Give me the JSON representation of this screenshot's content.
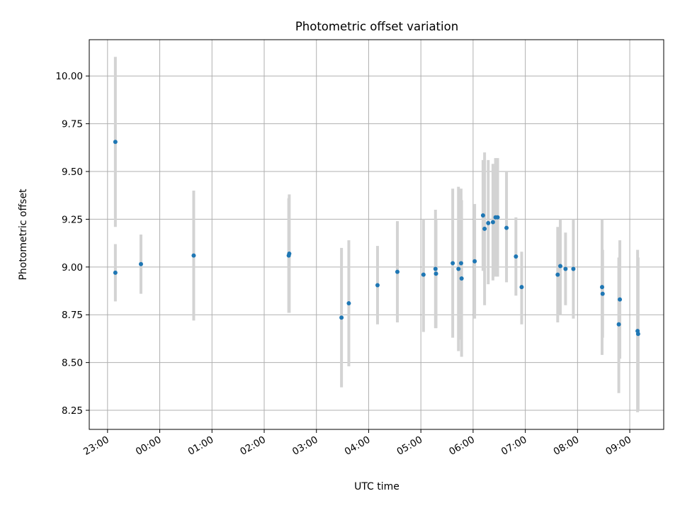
{
  "chart_data": {
    "type": "scatter",
    "title": "Photometric offset variation",
    "xlabel": "UTC time",
    "ylabel": "Photometric offset",
    "x_unit": "hours after 23:00 UTC",
    "x_tick_values": [
      0,
      1,
      2,
      3,
      4,
      5,
      6,
      7,
      8,
      9,
      10
    ],
    "x_tick_labels": [
      "23:00",
      "00:00",
      "01:00",
      "02:00",
      "03:00",
      "04:00",
      "05:00",
      "06:00",
      "07:00",
      "08:00",
      "09:00"
    ],
    "xlim": [
      -0.35,
      10.65
    ],
    "y_ticks": [
      8.25,
      8.5,
      8.75,
      9.0,
      9.25,
      9.5,
      9.75,
      10.0
    ],
    "y_tick_labels": [
      "8.25",
      "8.50",
      "8.75",
      "9.00",
      "9.25",
      "9.50",
      "9.75",
      "10.00"
    ],
    "ylim": [
      8.15,
      10.19
    ],
    "grid": true,
    "legend": false,
    "colors": {
      "marker": "#1f77b4",
      "errorbar": "#d3d3d3",
      "grid": "#b0b0b0"
    },
    "points": [
      {
        "x": 0.15,
        "y": 9.655,
        "err_low": 9.21,
        "err_high": 10.1
      },
      {
        "x": 0.15,
        "y": 8.97,
        "err_low": 8.82,
        "err_high": 9.12
      },
      {
        "x": 0.64,
        "y": 9.015,
        "err_low": 8.86,
        "err_high": 9.17
      },
      {
        "x": 1.65,
        "y": 9.06,
        "err_low": 8.72,
        "err_high": 9.4
      },
      {
        "x": 3.47,
        "y": 9.06,
        "err_low": 8.76,
        "err_high": 9.36
      },
      {
        "x": 3.48,
        "y": 9.07,
        "err_low": 8.76,
        "err_high": 9.38
      },
      {
        "x": 4.48,
        "y": 8.735,
        "err_low": 8.37,
        "err_high": 9.1
      },
      {
        "x": 4.62,
        "y": 8.81,
        "err_low": 8.48,
        "err_high": 9.14
      },
      {
        "x": 5.17,
        "y": 8.905,
        "err_low": 8.7,
        "err_high": 9.11
      },
      {
        "x": 5.55,
        "y": 8.975,
        "err_low": 8.71,
        "err_high": 9.24
      },
      {
        "x": 6.05,
        "y": 8.96,
        "err_low": 8.66,
        "err_high": 9.25
      },
      {
        "x": 6.28,
        "y": 8.99,
        "err_low": 8.68,
        "err_high": 9.3
      },
      {
        "x": 6.29,
        "y": 8.965,
        "err_low": 8.68,
        "err_high": 9.25
      },
      {
        "x": 6.61,
        "y": 9.02,
        "err_low": 8.63,
        "err_high": 9.41
      },
      {
        "x": 6.72,
        "y": 8.99,
        "err_low": 8.56,
        "err_high": 9.42
      },
      {
        "x": 6.77,
        "y": 9.02,
        "err_low": 8.62,
        "err_high": 9.41
      },
      {
        "x": 6.78,
        "y": 8.94,
        "err_low": 8.53,
        "err_high": 9.35
      },
      {
        "x": 7.03,
        "y": 9.03,
        "err_low": 8.73,
        "err_high": 9.33
      },
      {
        "x": 7.19,
        "y": 9.27,
        "err_low": 8.98,
        "err_high": 9.56
      },
      {
        "x": 7.22,
        "y": 9.2,
        "err_low": 8.8,
        "err_high": 9.6
      },
      {
        "x": 7.29,
        "y": 9.23,
        "err_low": 8.91,
        "err_high": 9.56
      },
      {
        "x": 7.38,
        "y": 9.235,
        "err_low": 8.93,
        "err_high": 9.54
      },
      {
        "x": 7.43,
        "y": 9.26,
        "err_low": 8.95,
        "err_high": 9.57
      },
      {
        "x": 7.47,
        "y": 9.26,
        "err_low": 8.95,
        "err_high": 9.57
      },
      {
        "x": 7.64,
        "y": 9.205,
        "err_low": 8.92,
        "err_high": 9.5
      },
      {
        "x": 7.82,
        "y": 9.055,
        "err_low": 8.85,
        "err_high": 9.26
      },
      {
        "x": 7.93,
        "y": 8.895,
        "err_low": 8.7,
        "err_high": 9.08
      },
      {
        "x": 8.62,
        "y": 8.96,
        "err_low": 8.71,
        "err_high": 9.21
      },
      {
        "x": 8.67,
        "y": 9.005,
        "err_low": 8.75,
        "err_high": 9.25
      },
      {
        "x": 8.77,
        "y": 8.99,
        "err_low": 8.8,
        "err_high": 9.18
      },
      {
        "x": 8.92,
        "y": 8.99,
        "err_low": 8.73,
        "err_high": 9.25
      },
      {
        "x": 9.47,
        "y": 8.895,
        "err_low": 8.54,
        "err_high": 9.25
      },
      {
        "x": 9.48,
        "y": 8.86,
        "err_low": 8.63,
        "err_high": 9.09
      },
      {
        "x": 9.81,
        "y": 8.83,
        "err_low": 8.52,
        "err_high": 9.14
      },
      {
        "x": 9.79,
        "y": 8.7,
        "err_low": 8.34,
        "err_high": 9.05
      },
      {
        "x": 10.15,
        "y": 8.665,
        "err_low": 8.24,
        "err_high": 9.09
      },
      {
        "x": 10.16,
        "y": 8.65,
        "err_low": 8.25,
        "err_high": 9.05
      }
    ]
  }
}
